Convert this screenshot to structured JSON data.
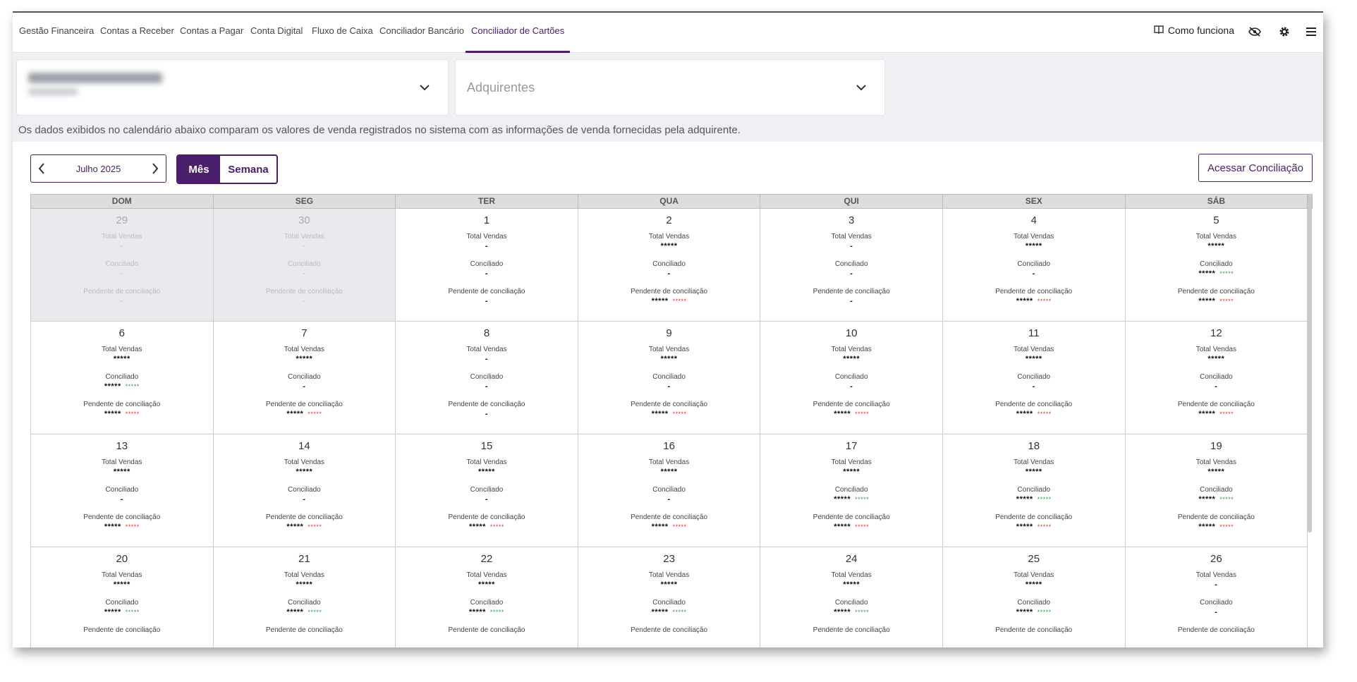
{
  "nav": {
    "tabs": [
      "Gestão Financeira",
      "Contas a Receber",
      "Contas a Pagar",
      "Conta Digital",
      "Fluxo de Caixa",
      "Conciliador Bancário",
      "Conciliador de Cartões"
    ],
    "how_it_works": "Como funciona",
    "icons": [
      "book-icon",
      "eye-off-icon",
      "gear-icon",
      "menu-icon"
    ]
  },
  "filters": {
    "acquirers_placeholder": "Adquirentes"
  },
  "info_text": "Os dados exibidos no calendário abaixo comparam os valores de venda registrados no sistema com as informações de venda fornecidas pela adquirente.",
  "calendar": {
    "month_label": "Julho 2025",
    "view_month": "Mês",
    "view_week": "Semana",
    "access_button": "Acessar Conciliação",
    "weekdays": [
      "DOM",
      "SEG",
      "TER",
      "QUA",
      "QUI",
      "SEX",
      "SÁB"
    ],
    "labels": {
      "total": "Total Vendas",
      "reconciled": "Conciliado",
      "pending": "Pendente de conciliação"
    },
    "days": [
      {
        "d": "29",
        "other": true,
        "t": "-",
        "c": "-",
        "p": "-"
      },
      {
        "d": "30",
        "other": true,
        "t": "-",
        "c": "-",
        "p": "-"
      },
      {
        "d": "1",
        "t": "-",
        "c": "-",
        "p": "-"
      },
      {
        "d": "2",
        "t": "*****",
        "c": "-",
        "p": "*****",
        "pm": "*****"
      },
      {
        "d": "3",
        "t": "-",
        "c": "-",
        "p": "-"
      },
      {
        "d": "4",
        "t": "*****",
        "c": "-",
        "p": "*****",
        "pm": "*****"
      },
      {
        "d": "5",
        "t": "*****",
        "c": "*****",
        "cm": "*****",
        "p": "*****",
        "pm": "*****"
      },
      {
        "d": "6",
        "t": "*****",
        "c": "*****",
        "cm": "*****",
        "p": "*****",
        "pm": "*****"
      },
      {
        "d": "7",
        "t": "*****",
        "c": "-",
        "p": "*****",
        "pm": "*****"
      },
      {
        "d": "8",
        "t": "-",
        "c": "-",
        "p": "-"
      },
      {
        "d": "9",
        "t": "*****",
        "c": "-",
        "p": "*****",
        "pm": "*****"
      },
      {
        "d": "10",
        "t": "*****",
        "c": "-",
        "p": "*****",
        "pm": "*****"
      },
      {
        "d": "11",
        "t": "*****",
        "c": "-",
        "p": "*****",
        "pm": "*****"
      },
      {
        "d": "12",
        "t": "*****",
        "c": "-",
        "p": "*****",
        "pm": "*****"
      },
      {
        "d": "13",
        "t": "*****",
        "c": "-",
        "p": "*****",
        "pm": "*****"
      },
      {
        "d": "14",
        "t": "*****",
        "c": "-",
        "p": "*****",
        "pm": "*****"
      },
      {
        "d": "15",
        "t": "*****",
        "c": "-",
        "p": "*****",
        "pm": "*****"
      },
      {
        "d": "16",
        "t": "*****",
        "c": "-",
        "p": "*****",
        "pm": "*****"
      },
      {
        "d": "17",
        "t": "*****",
        "c": "*****",
        "cm": "*****",
        "p": "*****",
        "pm": "*****"
      },
      {
        "d": "18",
        "t": "*****",
        "c": "*****",
        "cm": "*****",
        "p": "*****",
        "pm": "*****"
      },
      {
        "d": "19",
        "t": "*****",
        "c": "*****",
        "cm": "*****",
        "p": "*****",
        "pm": "*****"
      },
      {
        "d": "20",
        "t": "*****",
        "c": "*****",
        "cm": "*****",
        "p": ""
      },
      {
        "d": "21",
        "t": "*****",
        "c": "*****",
        "cm": "*****",
        "p": ""
      },
      {
        "d": "22",
        "t": "*****",
        "c": "*****",
        "cm": "*****",
        "p": ""
      },
      {
        "d": "23",
        "t": "*****",
        "c": "*****",
        "cm": "*****",
        "p": ""
      },
      {
        "d": "24",
        "t": "*****",
        "c": "*****",
        "cm": "*****",
        "p": ""
      },
      {
        "d": "25",
        "t": "*****",
        "c": "*****",
        "cm": "*****",
        "p": ""
      },
      {
        "d": "26",
        "t": "-",
        "c": "-",
        "p": ""
      }
    ]
  },
  "colors": {
    "brand": "#4a1e6b",
    "positive": "#2e9e4f",
    "negative": "#e03a3a"
  }
}
